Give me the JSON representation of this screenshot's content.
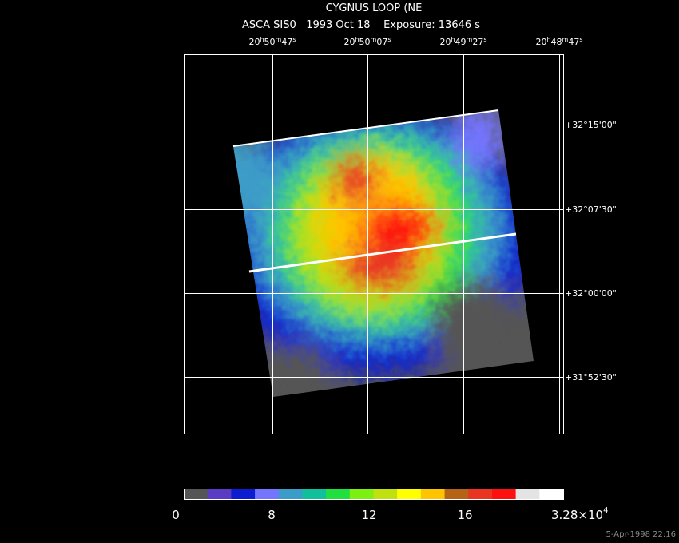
{
  "title": "CYGNUS LOOP (NE",
  "subtitle": "ASCA SIS0   1993 Oct 18    Exposure: 13646 s",
  "ra_units": [
    "h",
    "m",
    "s"
  ],
  "ra_labels": [
    {
      "h": "20",
      "m": "50",
      "s": "47"
    },
    {
      "h": "20",
      "m": "50",
      "s": "07"
    },
    {
      "h": "20",
      "m": "49",
      "s": "27"
    },
    {
      "h": "20",
      "m": "48",
      "s": "47"
    }
  ],
  "dec_labels": [
    "+32°15'00\"",
    "+32°07'30\"",
    "+32°00'00\"",
    "+31°52'30\""
  ],
  "colorbar": {
    "colors": [
      "#555555",
      "#5a3cc4",
      "#0c1cd0",
      "#7474ff",
      "#3c9cc8",
      "#10c09c",
      "#20e040",
      "#7cf010",
      "#c0e010",
      "#ffff00",
      "#ffc400",
      "#b46414",
      "#e83420",
      "#ff1010",
      "#e4e4e4",
      "#ffffff"
    ],
    "labels": [
      "0",
      "8",
      "12",
      "16"
    ],
    "max_label": {
      "mantissa": "3.28×10",
      "exponent": "4"
    }
  },
  "footer": "5-Apr-1998 22:16"
}
